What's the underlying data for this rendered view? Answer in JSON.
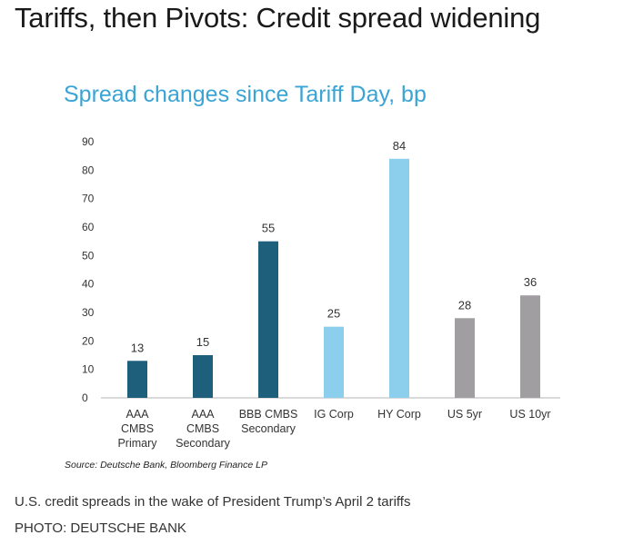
{
  "headline": "Tariffs, then Pivots: Credit spread widening",
  "caption": "U.S. credit spreads in the wake of President Trump’s April 2 tariffs",
  "photo_credit": "PHOTO: DEUTSCHE BANK",
  "colors": {
    "dark_blue": "#1e5f7c",
    "light_blue": "#8ccfec",
    "gray": "#a19ea1",
    "title_blue": "#3aa4d4"
  },
  "chart_data": {
    "type": "bar",
    "title": "Spread changes since Tariff Day, bp",
    "source": "Source: Deutsche Bank, Bloomberg Finance LP",
    "categories": [
      [
        "AAA",
        "CMBS",
        "Primary"
      ],
      [
        "AAA",
        "CMBS",
        "Secondary"
      ],
      [
        "BBB CMBS",
        "Secondary"
      ],
      [
        "IG Corp"
      ],
      [
        "HY Corp"
      ],
      [
        "US 5yr"
      ],
      [
        "US 10yr"
      ]
    ],
    "values": [
      13,
      15,
      55,
      25,
      84,
      28,
      36
    ],
    "bar_colors": [
      "#1e5f7c",
      "#1e5f7c",
      "#1e5f7c",
      "#8ccfec",
      "#8ccfec",
      "#a19ea1",
      "#a19ea1"
    ],
    "yticks": [
      0,
      10,
      20,
      30,
      40,
      50,
      60,
      70,
      80,
      90
    ],
    "ylim": [
      0,
      90
    ],
    "xlabel": "",
    "ylabel": "",
    "grid": false
  }
}
